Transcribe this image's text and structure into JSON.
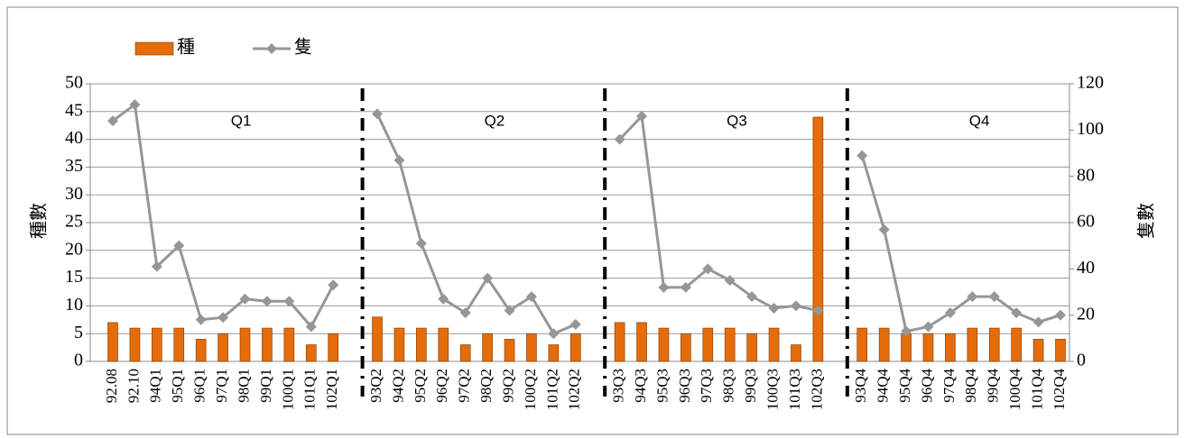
{
  "chart_data": {
    "type": "bar_line",
    "categories": [
      "92.08",
      "92.10",
      "94Q1",
      "95Q1",
      "96Q1",
      "97Q1",
      "98Q1",
      "99Q1",
      "100Q1",
      "101Q1",
      "102Q1",
      null,
      "93Q2",
      "94Q2",
      "95Q2",
      "96Q2",
      "97Q2",
      "98Q2",
      "99Q2",
      "100Q2",
      "101Q2",
      "102Q2",
      null,
      "93Q3",
      "94Q3",
      "95Q3",
      "96Q3",
      "97Q3",
      "98Q3",
      "99Q3",
      "100Q3",
      "101Q3",
      "102Q3",
      null,
      "93Q4",
      "94Q4",
      "95Q4",
      "96Q4",
      "97Q4",
      "98Q4",
      "99Q4",
      "100Q4",
      "101Q4",
      "102Q4"
    ],
    "series": [
      {
        "name": "種",
        "type": "bar",
        "color": "#e46c0a",
        "values": [
          7,
          6,
          6,
          6,
          4,
          5,
          6,
          6,
          6,
          3,
          5,
          null,
          8,
          6,
          6,
          6,
          3,
          5,
          4,
          5,
          3,
          5,
          null,
          7,
          7,
          6,
          5,
          6,
          6,
          5,
          6,
          3,
          44,
          null,
          6,
          6,
          5,
          5,
          5,
          6,
          6,
          6,
          4,
          4
        ]
      },
      {
        "name": "隻",
        "type": "line",
        "axis": "y2",
        "color": "#969696",
        "values": [
          104,
          111,
          41,
          50,
          18,
          19,
          27,
          26,
          26,
          15,
          33,
          null,
          107,
          87,
          51,
          27,
          21,
          36,
          22,
          28,
          12,
          16,
          null,
          96,
          106,
          32,
          32,
          40,
          35,
          28,
          23,
          24,
          22,
          null,
          89,
          57,
          13,
          15,
          21,
          28,
          28,
          21,
          17,
          20
        ]
      }
    ],
    "annotations": [
      "Q1",
      "Q2",
      "Q3",
      "Q4"
    ],
    "ylabel": "種數",
    "y2label": "隻數",
    "ylim": [
      0,
      50
    ],
    "yticks": [
      0,
      5,
      10,
      15,
      20,
      25,
      30,
      35,
      40,
      45,
      50
    ],
    "y2lim": [
      0,
      120
    ],
    "y2ticks": [
      0,
      20,
      40,
      60,
      80,
      100,
      120
    ],
    "grid": true,
    "legend": "top-left"
  }
}
